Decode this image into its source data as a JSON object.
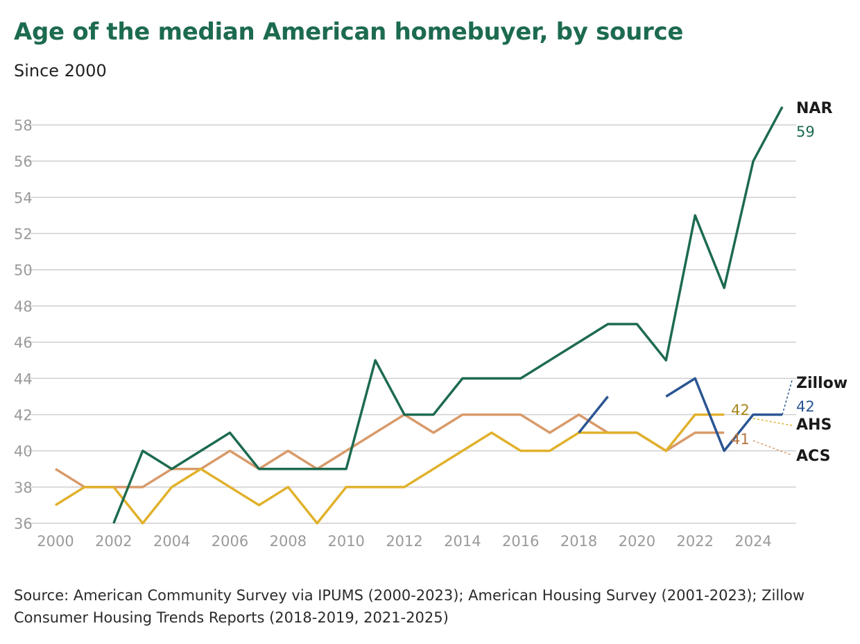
{
  "chart_data": {
    "type": "line",
    "title": "Age of the median American homebuyer, by source",
    "subtitle": "Since 2000",
    "xlabel": "",
    "ylabel": "",
    "xlim": [
      2000,
      2025
    ],
    "ylim": [
      36,
      58
    ],
    "x_ticks": [
      "2000",
      "2002",
      "2004",
      "2006",
      "2008",
      "2010",
      "2012",
      "2014",
      "2016",
      "2018",
      "2020",
      "2022",
      "2024"
    ],
    "y_ticks": [
      "36",
      "38",
      "40",
      "42",
      "44",
      "46",
      "48",
      "50",
      "52",
      "54",
      "56",
      "58"
    ],
    "grid": true,
    "series": [
      {
        "name": "ACS",
        "color": "#d89a6a",
        "x": [
          2000,
          2001,
          2002,
          2003,
          2004,
          2005,
          2006,
          2007,
          2008,
          2009,
          2010,
          2011,
          2012,
          2013,
          2014,
          2015,
          2016,
          2017,
          2018,
          2019,
          2020,
          2021,
          2022,
          2023
        ],
        "values": [
          39,
          38,
          38,
          38,
          39,
          39,
          40,
          39,
          40,
          39,
          40,
          41,
          42,
          41,
          42,
          42,
          42,
          41,
          42,
          41,
          41,
          40,
          41,
          41
        ],
        "end_label": "ACS",
        "end_value": "41"
      },
      {
        "name": "AHS",
        "color": "#e1b12c",
        "x": [
          2000,
          2001,
          2002,
          2003,
          2004,
          2005,
          2006,
          2007,
          2008,
          2009,
          2010,
          2011,
          2012,
          2013,
          2014,
          2015,
          2016,
          2017,
          2018,
          2019,
          2020,
          2021,
          2022,
          2023
        ],
        "values": [
          37,
          38,
          38,
          36,
          38,
          39,
          38,
          37,
          38,
          36,
          38,
          38,
          38,
          39,
          40,
          41,
          40,
          40,
          41,
          41,
          41,
          40,
          42,
          42
        ],
        "end_label": "AHS",
        "end_value": "42"
      },
      {
        "name": "NAR",
        "color": "#1d6b4f",
        "x": [
          2002,
          2003,
          2004,
          2005,
          2006,
          2007,
          2008,
          2009,
          2010,
          2011,
          2012,
          2013,
          2014,
          2015,
          2016,
          2017,
          2018,
          2019,
          2020,
          2021,
          2022,
          2023,
          2024,
          2025
        ],
        "values": [
          36,
          40,
          39,
          40,
          41,
          39,
          39,
          39,
          39,
          45,
          42,
          42,
          44,
          44,
          44,
          45,
          46,
          47,
          47,
          45,
          53,
          49,
          56,
          59
        ],
        "end_label": "NAR",
        "end_value": "59"
      },
      {
        "name": "Zillow",
        "color": "#2a5592",
        "segments": [
          {
            "x": [
              2018,
              2019
            ],
            "values": [
              41,
              43
            ]
          },
          {
            "x": [
              2021,
              2022,
              2023,
              2024,
              2025
            ],
            "values": [
              43,
              44,
              40,
              42,
              42
            ]
          }
        ],
        "end_label": "Zillow",
        "end_value": "42"
      }
    ],
    "source": [
      "Source: American Community Survey via IPUMS (2000-2023); American Housing Survey (2001-2023); Zillow",
      "Consumer Housing Trends Reports (2018-2019, 2021-2025)"
    ]
  }
}
